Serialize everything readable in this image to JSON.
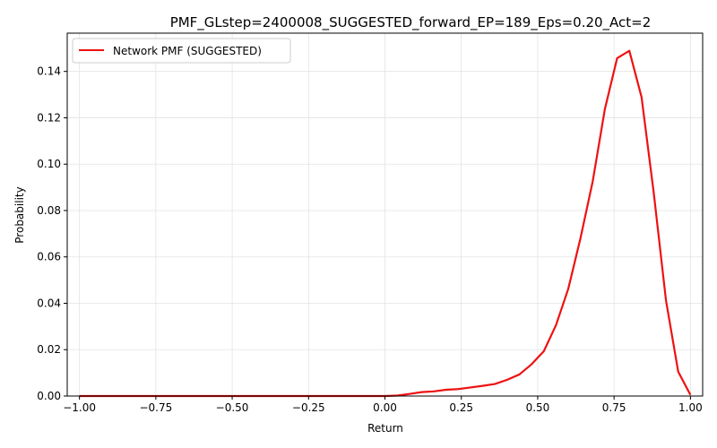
{
  "chart_data": {
    "type": "line",
    "title": "PMF_GLstep=2400008_SUGGESTED_forward_EP=189_Eps=0.20_Act=2",
    "xlabel": "Return",
    "ylabel": "Probability",
    "xlim": [
      -1.04,
      1.04
    ],
    "ylim": [
      0.0,
      0.1565
    ],
    "xticks": [
      -1.0,
      -0.75,
      -0.5,
      -0.25,
      0.0,
      0.25,
      0.5,
      0.75,
      1.0
    ],
    "xtick_labels": [
      "−1.00",
      "−0.75",
      "−0.50",
      "−0.25",
      "0.00",
      "0.25",
      "0.50",
      "0.75",
      "1.00"
    ],
    "yticks": [
      0.0,
      0.02,
      0.04,
      0.06,
      0.08,
      0.1,
      0.12,
      0.14
    ],
    "ytick_labels": [
      "0.00",
      "0.02",
      "0.04",
      "0.06",
      "0.08",
      "0.10",
      "0.12",
      "0.14"
    ],
    "grid": true,
    "legend_position": "top-left",
    "series": [
      {
        "name": "Network PMF (SUGGESTED)",
        "color": "#ee1111",
        "x": [
          -1.0,
          -0.96,
          -0.92,
          -0.88,
          -0.84,
          -0.8,
          -0.76,
          -0.72,
          -0.68,
          -0.64,
          -0.6,
          -0.56,
          -0.52,
          -0.48,
          -0.44,
          -0.4,
          -0.36,
          -0.32,
          -0.28,
          -0.24,
          -0.2,
          -0.16,
          -0.12,
          -0.08,
          -0.04,
          0.0,
          0.04,
          0.08,
          0.12,
          0.16,
          0.2,
          0.24,
          0.28,
          0.32,
          0.36,
          0.4,
          0.44,
          0.48,
          0.52,
          0.56,
          0.6,
          0.64,
          0.68,
          0.72,
          0.76,
          0.8,
          0.84,
          0.88,
          0.92,
          0.96,
          1.0
        ],
        "y": [
          0.0,
          0.0,
          0.0,
          0.0,
          0.0,
          0.0,
          0.0,
          0.0,
          0.0,
          0.0,
          0.0,
          0.0,
          0.0,
          0.0,
          0.0,
          0.0,
          0.0,
          0.0,
          0.0,
          0.0,
          0.0,
          0.0,
          0.0,
          0.0,
          0.0,
          0.0,
          0.0002,
          0.0009,
          0.0017,
          0.002,
          0.0027,
          0.003,
          0.0037,
          0.0044,
          0.0052,
          0.007,
          0.0093,
          0.0137,
          0.0193,
          0.0306,
          0.0462,
          0.068,
          0.0925,
          0.1238,
          0.1457,
          0.1489,
          0.1289,
          0.0875,
          0.0412,
          0.0105,
          0.0005
        ]
      }
    ]
  }
}
